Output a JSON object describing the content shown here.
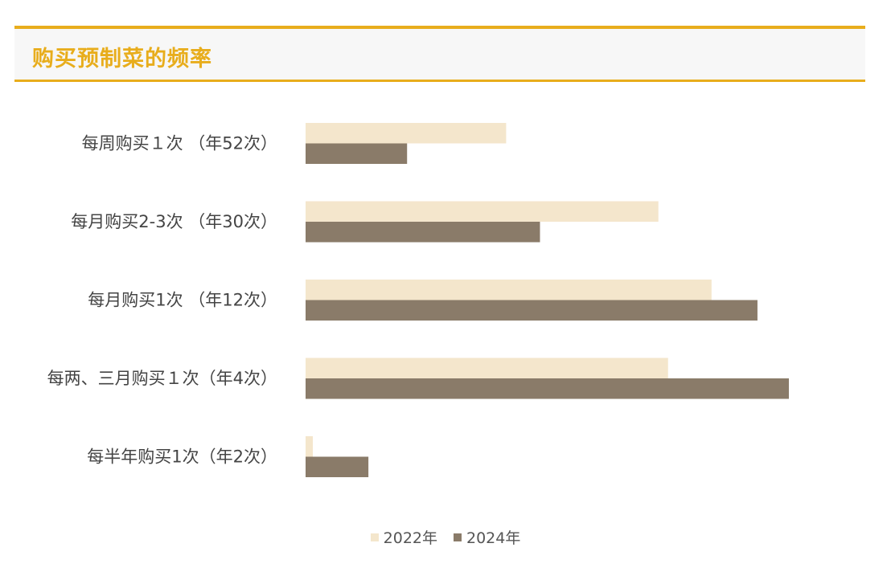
{
  "header": {
    "title": "购买预制菜的频率"
  },
  "colors": {
    "accent": "#e8ad1c",
    "series_2022": "#f4e6cc",
    "series_2024": "#8a7b69"
  },
  "chart_data": {
    "type": "bar",
    "orientation": "horizontal",
    "title": "购买预制菜的频率",
    "categories": [
      "每周购买１次 （年52次）",
      "每月购买2-3次 （年30次）",
      "每月购买1次 （年12次）",
      "每两、三月购买１次（年4次）",
      "每半年购买1次（年2次）"
    ],
    "series": [
      {
        "name": "2022年",
        "color": "#f4e6cc",
        "values": [
          41.5,
          73,
          84,
          75,
          1.5
        ]
      },
      {
        "name": "2024年",
        "color": "#8a7b69",
        "values": [
          21,
          48.5,
          93.5,
          100,
          13
        ]
      }
    ],
    "xlim": [
      0,
      100
    ],
    "grid": false,
    "legend": "bottom"
  }
}
